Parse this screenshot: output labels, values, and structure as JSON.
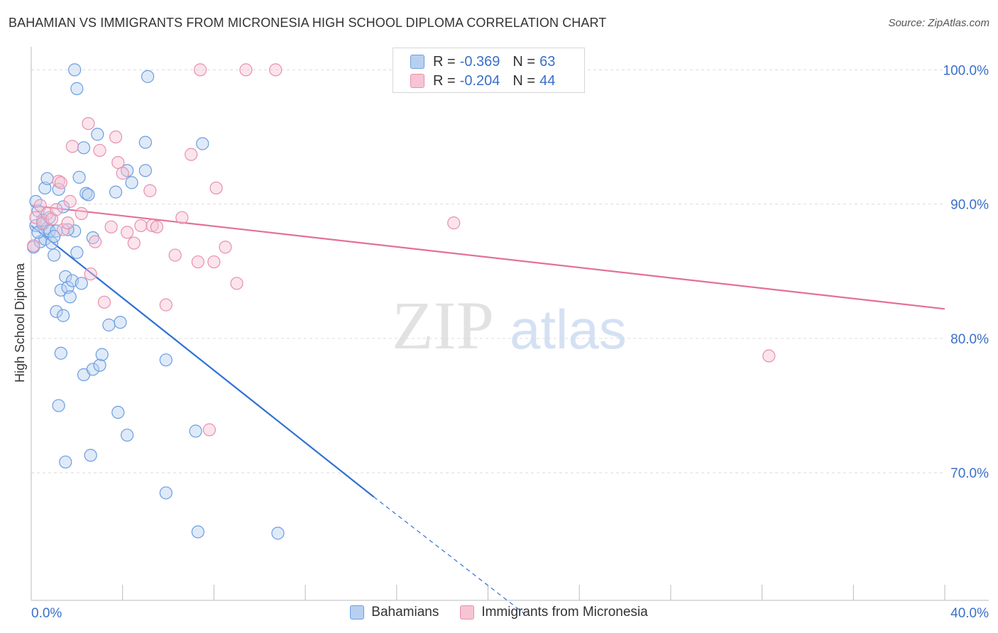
{
  "header": {
    "title": "BAHAMIAN VS IMMIGRANTS FROM MICRONESIA HIGH SCHOOL DIPLOMA CORRELATION CHART",
    "source": "Source: ZipAtlas.com"
  },
  "watermark": {
    "zip": "ZIP",
    "atlas": "atlas"
  },
  "legend": {
    "rows": [
      {
        "r_label": "R =",
        "r_value": "-0.369",
        "n_label": "N =",
        "n_value": "63"
      },
      {
        "r_label": "R =",
        "r_value": "-0.204",
        "n_label": "N =",
        "n_value": "44"
      }
    ]
  },
  "bottom_legend": {
    "items": [
      "Bahamians",
      "Immigrants from Micronesia"
    ]
  },
  "colors": {
    "blue_fill": "#b8d0f0",
    "blue_stroke": "#6b9de0",
    "blue_line": "#2f72d3",
    "pink_fill": "#f7c4d4",
    "pink_stroke": "#e890ac",
    "pink_line": "#e3709a",
    "axis_text": "#3a6fc9"
  },
  "chart_data": {
    "type": "scatter",
    "title": "BAHAMIAN VS IMMIGRANTS FROM MICRONESIA HIGH SCHOOL DIPLOMA CORRELATION CHART",
    "xlabel": "",
    "ylabel": "High School Diploma",
    "xlim": [
      0,
      40
    ],
    "ylim": [
      60.5,
      101.5
    ],
    "x_tick_labels": [
      "0.0%",
      "40.0%"
    ],
    "y_ticks": [
      70,
      80,
      90,
      100
    ],
    "y_tick_labels": [
      "70.0%",
      "80.0%",
      "90.0%",
      "100.0%"
    ],
    "grid": true,
    "series": [
      {
        "name": "Bahamians",
        "r": -0.369,
        "n": 63,
        "points": [
          [
            0.1,
            86.8
          ],
          [
            0.2,
            88.4
          ],
          [
            0.3,
            89.5
          ],
          [
            0.2,
            90.2
          ],
          [
            0.4,
            87.2
          ],
          [
            0.5,
            88.5
          ],
          [
            0.6,
            87.4
          ],
          [
            0.7,
            88.2
          ],
          [
            0.8,
            88.0
          ],
          [
            0.9,
            87.1
          ],
          [
            0.6,
            91.2
          ],
          [
            0.7,
            91.9
          ],
          [
            1.0,
            86.2
          ],
          [
            1.1,
            88.0
          ],
          [
            1.2,
            91.1
          ],
          [
            1.4,
            89.8
          ],
          [
            1.3,
            83.6
          ],
          [
            1.5,
            84.6
          ],
          [
            1.6,
            83.8
          ],
          [
            1.7,
            83.1
          ],
          [
            1.8,
            84.3
          ],
          [
            1.9,
            88.0
          ],
          [
            2.0,
            86.4
          ],
          [
            2.2,
            84.1
          ],
          [
            2.0,
            98.6
          ],
          [
            1.9,
            100.0
          ],
          [
            2.3,
            94.2
          ],
          [
            2.1,
            92.0
          ],
          [
            2.4,
            90.8
          ],
          [
            2.5,
            90.7
          ],
          [
            2.7,
            87.5
          ],
          [
            2.9,
            95.2
          ],
          [
            3.7,
            90.9
          ],
          [
            4.2,
            92.5
          ],
          [
            4.4,
            91.6
          ],
          [
            5.0,
            92.5
          ],
          [
            5.0,
            94.6
          ],
          [
            5.1,
            99.5
          ],
          [
            7.5,
            94.5
          ],
          [
            1.1,
            82.0
          ],
          [
            1.4,
            81.7
          ],
          [
            1.3,
            78.9
          ],
          [
            1.2,
            75.0
          ],
          [
            1.5,
            70.8
          ],
          [
            2.3,
            77.3
          ],
          [
            2.7,
            77.7
          ],
          [
            3.0,
            78.0
          ],
          [
            3.1,
            78.8
          ],
          [
            3.4,
            81.0
          ],
          [
            3.9,
            81.2
          ],
          [
            3.8,
            74.5
          ],
          [
            4.2,
            72.8
          ],
          [
            5.9,
            78.4
          ],
          [
            7.2,
            73.1
          ],
          [
            5.9,
            68.5
          ],
          [
            2.6,
            71.3
          ],
          [
            7.3,
            65.6
          ],
          [
            10.8,
            65.5
          ],
          [
            0.3,
            87.9
          ],
          [
            0.5,
            88.8
          ],
          [
            1.0,
            87.6
          ],
          [
            0.8,
            89.0
          ],
          [
            1.6,
            88.1
          ]
        ],
        "trend": {
          "x": [
            0.0,
            15.0
          ],
          "y": [
            88.4,
            68.2
          ],
          "dashed_extension": {
            "x": [
              15.0,
              21.6
            ],
            "y": [
              68.2,
              59.5
            ]
          }
        }
      },
      {
        "name": "Immigrants from Micronesia",
        "r": -0.204,
        "n": 44,
        "points": [
          [
            0.1,
            86.9
          ],
          [
            0.2,
            89.0
          ],
          [
            0.4,
            89.9
          ],
          [
            0.5,
            88.6
          ],
          [
            0.7,
            89.3
          ],
          [
            0.9,
            88.9
          ],
          [
            1.1,
            89.6
          ],
          [
            1.2,
            91.7
          ],
          [
            1.3,
            91.6
          ],
          [
            1.4,
            88.1
          ],
          [
            1.6,
            88.6
          ],
          [
            1.7,
            90.2
          ],
          [
            1.8,
            94.3
          ],
          [
            2.2,
            89.3
          ],
          [
            2.5,
            96.0
          ],
          [
            2.6,
            84.8
          ],
          [
            2.8,
            87.2
          ],
          [
            3.0,
            94.0
          ],
          [
            3.2,
            82.7
          ],
          [
            3.5,
            88.3
          ],
          [
            3.7,
            95.0
          ],
          [
            3.8,
            93.1
          ],
          [
            4.0,
            92.3
          ],
          [
            4.2,
            87.9
          ],
          [
            4.5,
            87.1
          ],
          [
            4.8,
            88.4
          ],
          [
            5.2,
            91.0
          ],
          [
            5.3,
            88.4
          ],
          [
            5.5,
            88.3
          ],
          [
            5.9,
            82.5
          ],
          [
            6.3,
            86.2
          ],
          [
            6.6,
            89.0
          ],
          [
            7.0,
            93.7
          ],
          [
            7.3,
            85.7
          ],
          [
            7.4,
            100.0
          ],
          [
            8.0,
            85.7
          ],
          [
            8.1,
            91.2
          ],
          [
            8.5,
            86.8
          ],
          [
            9.0,
            84.1
          ],
          [
            9.4,
            100.0
          ],
          [
            10.7,
            100.0
          ],
          [
            7.8,
            73.2
          ],
          [
            18.5,
            88.6
          ],
          [
            32.3,
            78.7
          ]
        ],
        "trend": {
          "x": [
            0.0,
            40.0
          ],
          "y": [
            89.9,
            82.2
          ]
        }
      }
    ]
  }
}
